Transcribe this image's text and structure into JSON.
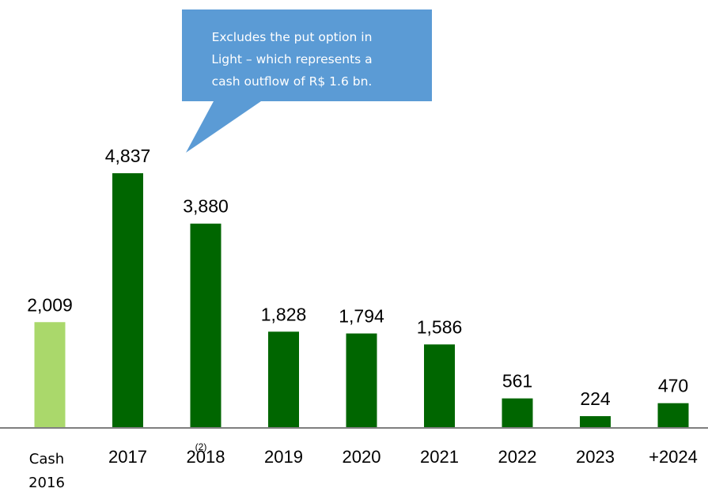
{
  "chart_data": {
    "type": "bar",
    "categories": [
      "Cash 2016",
      "2017",
      "2018",
      "2019",
      "2020",
      "2021",
      "2022",
      "2023",
      "+2024"
    ],
    "category_lines": [
      [
        "Cash",
        "2016"
      ],
      [
        "2017"
      ],
      [
        "2018"
      ],
      [
        "2019"
      ],
      [
        "2020"
      ],
      [
        "2021"
      ],
      [
        "2022"
      ],
      [
        "2023"
      ],
      [
        "+2024"
      ]
    ],
    "values": [
      2009,
      4837,
      3880,
      1828,
      1794,
      1586,
      561,
      224,
      470
    ],
    "value_labels": [
      "2,009",
      "4,837",
      "3,880",
      "1,828",
      "1,794",
      "1,586",
      "561",
      "224",
      "470"
    ],
    "footnote_mark": "(2)",
    "footnote_category": "2018",
    "ylim": [
      0,
      5500
    ],
    "grid": false,
    "legend": "none",
    "colors": {
      "cash": "#aad86b",
      "bar": "#006600",
      "axis": "#7f7f7f",
      "callout": "#5b9bd5"
    },
    "callout": {
      "lines": [
        "Excludes the put option in",
        "Light – which represents a",
        "cash outflow of R$ 1.6 bn."
      ],
      "points_to": "2018"
    }
  }
}
